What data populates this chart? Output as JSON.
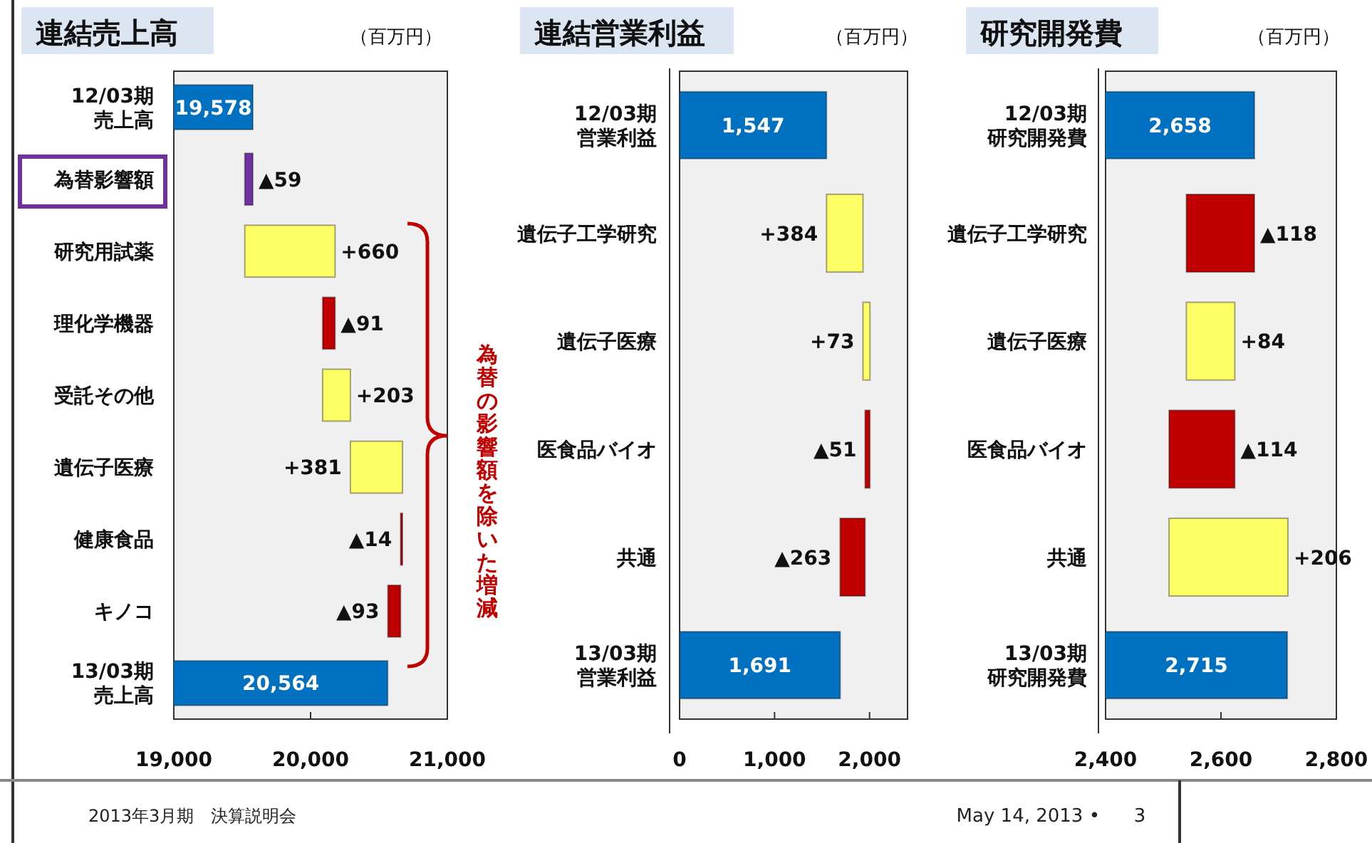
{
  "chart_data": [
    {
      "type": "bar",
      "orientation": "horizontal",
      "title": "連結売上高",
      "annotations": [
        "（百万円）",
        "為替の影響額を除いた増減",
        "2013年3月期　決算説明会",
        "May 14, 2013 •",
        "3"
      ],
      "categories": [
        "12/03期売上高",
        "為替影響額",
        "研究用試薬",
        "理化学機器",
        "受託その他",
        "遺伝子医療",
        "健康食品",
        "キノコ",
        "13/03期売上高"
      ],
      "values": [
        19578,
        -59,
        660,
        -91,
        203,
        381,
        -14,
        -93,
        20564
      ],
      "base": [
        null,
        19578,
        19519,
        20179,
        20088,
        20291,
        20672,
        20658,
        null
      ],
      "colors": [
        "#0070c0",
        "#7030a0",
        "#ffff66",
        "#c00000",
        "#ffff66",
        "#ffff66",
        "#c00000",
        "#c00000",
        "#0070c0"
      ],
      "value_labels": [
        "19,578",
        "▲59",
        "+660",
        "▲91",
        "+203",
        "+381",
        "▲14",
        "▲93",
        "20,564"
      ],
      "xlim": [
        19000,
        21000
      ],
      "xticks": [
        {
          "value": 19000,
          "label": "19,000"
        },
        {
          "value": 20000,
          "label": "20,000"
        },
        {
          "value": 21000,
          "label": "21,000"
        }
      ]
    },
    {
      "type": "bar",
      "orientation": "horizontal",
      "title": "連結営業利益",
      "annotations": [
        "（百万円）"
      ],
      "categories": [
        "12/03期営業利益",
        "遺伝子工学研究",
        "遺伝子医療",
        "医食品バイオ",
        "共通",
        "13/03期営業利益"
      ],
      "values": [
        1547,
        384,
        73,
        -51,
        -263,
        1691
      ],
      "base": [
        null,
        1547,
        1931,
        2004,
        1953,
        null
      ],
      "colors": [
        "#0070c0",
        "#ffff66",
        "#ffff66",
        "#c00000",
        "#c00000",
        "#0070c0"
      ],
      "value_labels": [
        "1,547",
        "+384",
        "+73",
        "▲51",
        "▲263",
        "1,691"
      ],
      "xlim": [
        0,
        2400
      ],
      "xticks": [
        0,
        {
          "value": 1000,
          "label": "1,000"
        },
        {
          "value": 2000,
          "label": "2,000"
        }
      ]
    },
    {
      "type": "bar",
      "orientation": "horizontal",
      "title": "研究開発費",
      "annotations": [
        "（百万円）"
      ],
      "categories": [
        "12/03期研究開発費",
        "遺伝子工学研究",
        "遺伝子医療",
        "医食品バイオ",
        "共通",
        "13/03期研究開発費"
      ],
      "values": [
        2658,
        -118,
        84,
        -114,
        206,
        2715
      ],
      "base": [
        null,
        2658,
        2540,
        2624,
        2510,
        null
      ],
      "colors": [
        "#0070c0",
        "#c00000",
        "#ffff66",
        "#c00000",
        "#ffff66",
        "#0070c0"
      ],
      "value_labels": [
        "2,658",
        "▲118",
        "+84",
        "▲114",
        "+206",
        "2,715"
      ],
      "xlim": [
        2400,
        2800
      ],
      "xticks": [
        {
          "value": 2400,
          "label": "2,400"
        },
        {
          "value": 2600,
          "label": "2,600"
        },
        {
          "value": 2800,
          "label": "2,800"
        }
      ]
    }
  ]
}
